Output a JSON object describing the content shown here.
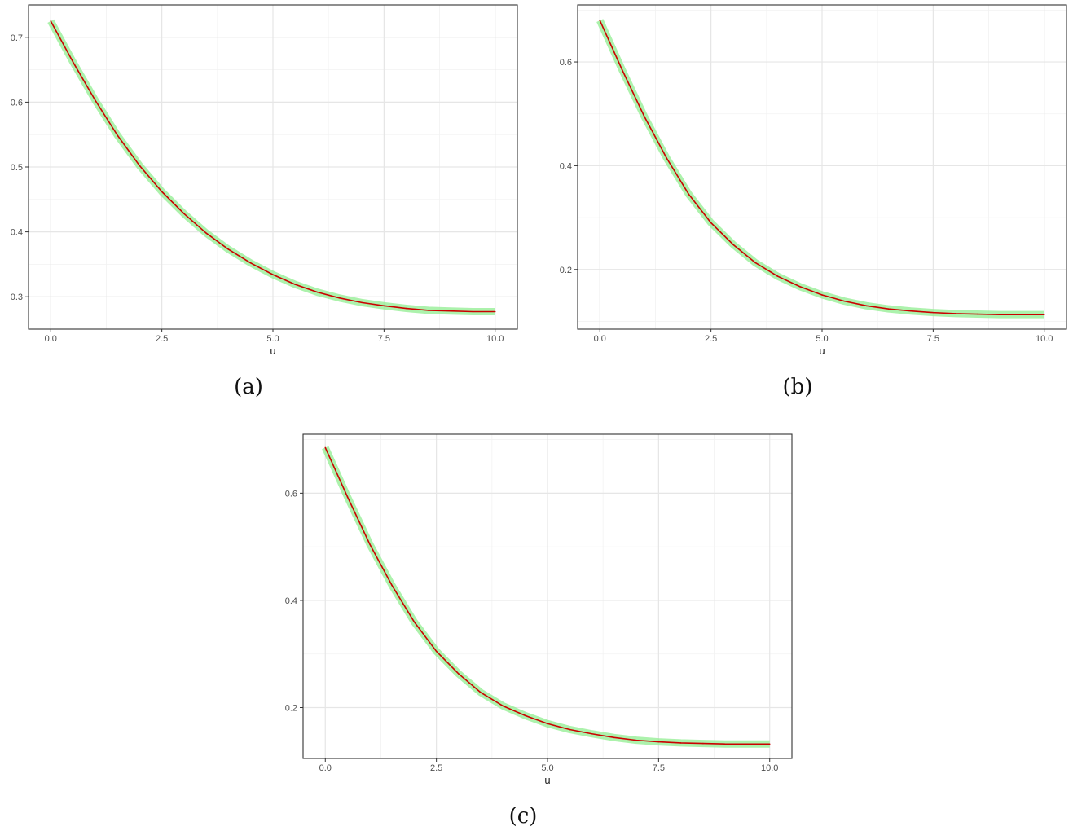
{
  "chart_data": [
    {
      "type": "line",
      "caption": "(a)",
      "xlabel": "u",
      "ylabel": "",
      "xlim": [
        -0.5,
        10.5
      ],
      "ylim": [
        0.25,
        0.75
      ],
      "xticks": [
        0,
        2.5,
        5,
        7.5,
        10
      ],
      "xtick_labels": [
        "0.0",
        "2.5",
        "5.0",
        "7.5",
        "10.0"
      ],
      "yticks": [
        0.3,
        0.4,
        0.5,
        0.6,
        0.7
      ],
      "ytick_labels": [
        "0.3",
        "0.4",
        "0.5",
        "0.6",
        "0.7"
      ],
      "grid": true,
      "band_color": "#90ee90",
      "line_color": "#cc0000",
      "series": [
        {
          "x": [
            0,
            0.5,
            1,
            1.5,
            2,
            2.5,
            3,
            3.5,
            4,
            4.5,
            5,
            5.5,
            6,
            6.5,
            7,
            7.5,
            8,
            8.5,
            9,
            9.5,
            10
          ],
          "y": [
            0.725,
            0.662,
            0.603,
            0.549,
            0.502,
            0.462,
            0.428,
            0.398,
            0.373,
            0.352,
            0.334,
            0.319,
            0.307,
            0.298,
            0.291,
            0.286,
            0.282,
            0.279,
            0.278,
            0.277,
            0.277
          ]
        }
      ]
    },
    {
      "type": "line",
      "caption": "(b)",
      "xlabel": "u",
      "ylabel": "",
      "xlim": [
        -0.5,
        10.5
      ],
      "ylim": [
        0.085,
        0.71
      ],
      "xticks": [
        0,
        2.5,
        5,
        7.5,
        10
      ],
      "xtick_labels": [
        "0.0",
        "2.5",
        "5.0",
        "7.5",
        "10.0"
      ],
      "yticks": [
        0.2,
        0.4,
        0.6
      ],
      "ytick_labels": [
        "0.2",
        "0.4",
        "0.6"
      ],
      "grid": true,
      "band_color": "#90ee90",
      "line_color": "#cc0000",
      "series": [
        {
          "x": [
            0,
            0.5,
            1,
            1.5,
            2,
            2.5,
            3,
            3.5,
            4,
            4.5,
            5,
            5.5,
            6,
            6.5,
            7,
            7.5,
            8,
            8.5,
            9,
            9.5,
            10
          ],
          "y": [
            0.68,
            0.585,
            0.495,
            0.415,
            0.345,
            0.29,
            0.248,
            0.213,
            0.187,
            0.167,
            0.151,
            0.139,
            0.13,
            0.124,
            0.12,
            0.117,
            0.115,
            0.114,
            0.113,
            0.113,
            0.113
          ]
        }
      ]
    },
    {
      "type": "line",
      "caption": "(c)",
      "xlabel": "u",
      "ylabel": "",
      "xlim": [
        -0.5,
        10.5
      ],
      "ylim": [
        0.105,
        0.71
      ],
      "xticks": [
        0,
        2.5,
        5,
        7.5,
        10
      ],
      "xtick_labels": [
        "0.0",
        "2.5",
        "5.0",
        "7.5",
        "10.0"
      ],
      "yticks": [
        0.2,
        0.4,
        0.6
      ],
      "ytick_labels": [
        "0.2",
        "0.4",
        "0.6"
      ],
      "grid": true,
      "band_color": "#90ee90",
      "line_color": "#cc0000",
      "series": [
        {
          "x": [
            0,
            0.5,
            1,
            1.5,
            2,
            2.5,
            3,
            3.5,
            4,
            4.5,
            5,
            5.5,
            6,
            6.5,
            7,
            7.5,
            8,
            8.5,
            9,
            9.5,
            10
          ],
          "y": [
            0.685,
            0.593,
            0.505,
            0.428,
            0.36,
            0.305,
            0.263,
            0.228,
            0.203,
            0.185,
            0.17,
            0.159,
            0.151,
            0.144,
            0.139,
            0.136,
            0.134,
            0.133,
            0.132,
            0.132,
            0.132
          ]
        }
      ]
    }
  ]
}
